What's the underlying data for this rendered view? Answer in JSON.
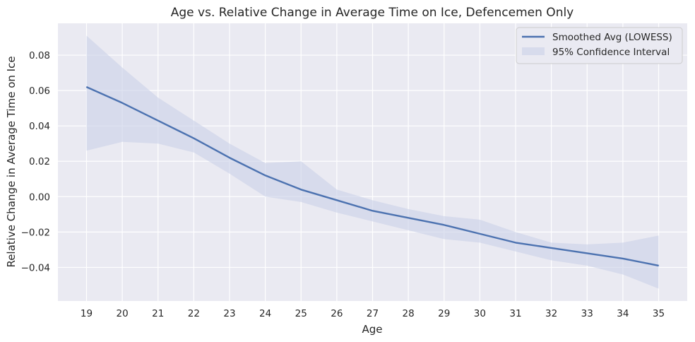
{
  "chart_data": {
    "type": "line",
    "title": "Age vs. Relative Change in Average Time on Ice, Defencemen Only",
    "xlabel": "Age",
    "ylabel": "Relative Change in Average Time on Ice",
    "x": [
      19,
      20,
      21,
      22,
      23,
      24,
      25,
      26,
      27,
      28,
      29,
      30,
      31,
      32,
      33,
      34,
      35
    ],
    "xlim": [
      18.2,
      35.8
    ],
    "ylim": [
      -0.059,
      0.098
    ],
    "y_ticks": [
      "0.08",
      "0.06",
      "0.04",
      "0.02",
      "0.00",
      "−0.02",
      "−0.04"
    ],
    "x_ticks": [
      "19",
      "20",
      "21",
      "22",
      "23",
      "24",
      "25",
      "26",
      "27",
      "28",
      "29",
      "30",
      "31",
      "32",
      "33",
      "34",
      "35"
    ],
    "grid": true,
    "legend_position": "top-right",
    "series": [
      {
        "name": "Smoothed Avg (LOWESS)",
        "kind": "line",
        "color": "#4c72b0",
        "values": [
          0.062,
          0.053,
          0.043,
          0.033,
          0.022,
          0.012,
          0.004,
          -0.002,
          -0.008,
          -0.012,
          -0.016,
          -0.021,
          -0.026,
          -0.029,
          -0.032,
          -0.035,
          -0.039
        ]
      },
      {
        "name": "95% Confidence Interval",
        "kind": "band",
        "color": "#c9d1e8",
        "upper": [
          0.091,
          0.073,
          0.056,
          0.043,
          0.03,
          0.019,
          0.02,
          0.004,
          -0.002,
          -0.007,
          -0.011,
          -0.013,
          -0.02,
          -0.026,
          -0.027,
          -0.026,
          -0.022
        ],
        "lower": [
          0.026,
          0.031,
          0.03,
          0.025,
          0.013,
          0.0,
          -0.003,
          -0.009,
          -0.014,
          -0.019,
          -0.024,
          -0.026,
          -0.031,
          -0.036,
          -0.039,
          -0.044,
          -0.052
        ]
      }
    ]
  }
}
